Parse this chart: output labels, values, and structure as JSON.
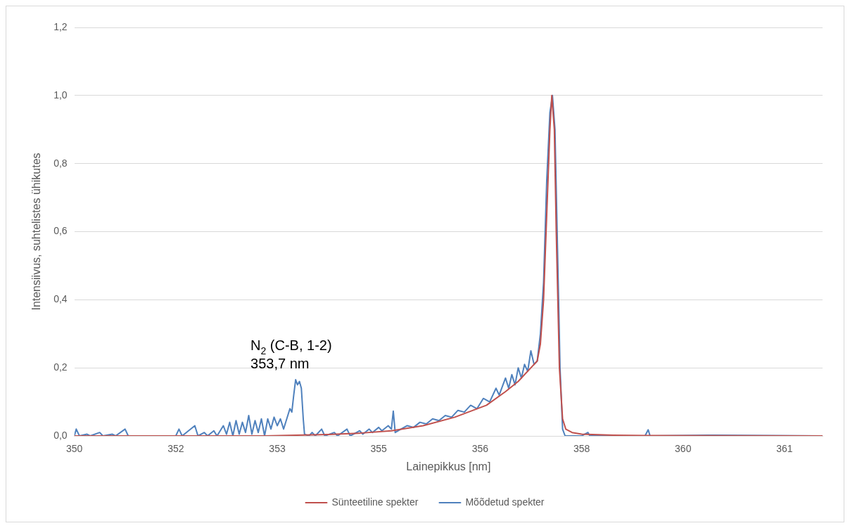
{
  "chart_data": {
    "type": "line",
    "xlabel": "Lainepikkus [nm]",
    "ylabel": "Intensiivus, suhtelistes ühikutes",
    "xlim": [
      350,
      361.8
    ],
    "xticks": [
      {
        "value": 350,
        "label": "350"
      },
      {
        "value": 351.6,
        "label": "352"
      },
      {
        "value": 353.2,
        "label": "353"
      },
      {
        "value": 354.8,
        "label": "355"
      },
      {
        "value": 356.4,
        "label": "356"
      },
      {
        "value": 358,
        "label": "358"
      },
      {
        "value": 359.6,
        "label": "360"
      },
      {
        "value": 361.2,
        "label": "361"
      }
    ],
    "ylim": [
      0,
      1.2
    ],
    "yticks": [
      {
        "value": 0,
        "label": "0,0"
      },
      {
        "value": 0.2,
        "label": "0,2"
      },
      {
        "value": 0.4,
        "label": "0,4"
      },
      {
        "value": 0.6,
        "label": "0,6"
      },
      {
        "value": 0.8,
        "label": "0,8"
      },
      {
        "value": 1,
        "label": "1,0"
      },
      {
        "value": 1.2,
        "label": "1,2"
      }
    ],
    "grid": "y",
    "legend": "bottom",
    "marker": "none",
    "line_style": "solid",
    "annotations": [
      {
        "text": "N$_{2}$ (C-B, 1-2)\n353,7 nm",
        "x": 353.5,
        "y": 0.165
      }
    ],
    "series": [
      {
        "name": "Sünteetiline spekter",
        "color": "#c0504d",
        "x": [
          350,
          353,
          353.5,
          354,
          354.5,
          355,
          355.5,
          356,
          356.5,
          356.8,
          357,
          357.2,
          357.3,
          357.35,
          357.4,
          357.45,
          357.5,
          357.53,
          357.57,
          357.6,
          357.65,
          357.7,
          357.75,
          357.85,
          358,
          358.5,
          359,
          361.8
        ],
        "values": [
          0,
          0,
          0.002,
          0.004,
          0.008,
          0.015,
          0.03,
          0.055,
          0.09,
          0.13,
          0.16,
          0.2,
          0.22,
          0.27,
          0.4,
          0.65,
          0.9,
          1,
          0.9,
          0.6,
          0.2,
          0.05,
          0.02,
          0.01,
          0.005,
          0.002,
          0.001,
          0
        ]
      },
      {
        "name": "Mõõdetud spekter",
        "color": "#4f81bd",
        "x": [
          350,
          350.03,
          350.08,
          350.2,
          350.25,
          350.4,
          350.45,
          350.6,
          350.65,
          350.8,
          350.85,
          351,
          351.6,
          351.65,
          351.7,
          351.9,
          351.95,
          352.05,
          352.1,
          352.2,
          352.25,
          352.35,
          352.4,
          352.45,
          352.5,
          352.55,
          352.6,
          352.65,
          352.7,
          352.75,
          352.8,
          352.85,
          352.9,
          352.95,
          353,
          353.05,
          353.1,
          353.15,
          353.2,
          353.25,
          353.3,
          353.35,
          353.4,
          353.43,
          353.46,
          353.49,
          353.52,
          353.55,
          353.58,
          353.61,
          353.63,
          353.7,
          353.75,
          353.8,
          353.9,
          353.95,
          354.1,
          354.15,
          354.3,
          354.35,
          354.5,
          354.55,
          354.65,
          354.7,
          354.8,
          354.85,
          354.95,
          355,
          355.03,
          355.06,
          355.15,
          355.25,
          355.35,
          355.45,
          355.55,
          355.65,
          355.75,
          355.85,
          355.95,
          356.05,
          356.15,
          356.25,
          356.35,
          356.45,
          356.55,
          356.65,
          356.7,
          356.8,
          356.85,
          356.9,
          356.95,
          357,
          357.05,
          357.1,
          357.15,
          357.2,
          357.25,
          357.3,
          357.35,
          357.4,
          357.45,
          357.5,
          357.54,
          357.58,
          357.62,
          357.66,
          357.7,
          357.74,
          358,
          358.1,
          358.13,
          359,
          359.05,
          359.08,
          360,
          361.8
        ],
        "values": [
          0,
          0.02,
          0,
          0.005,
          0,
          0.01,
          0,
          0.005,
          0,
          0.02,
          0,
          0,
          0,
          0.02,
          0,
          0.03,
          0,
          0.01,
          0,
          0.015,
          0,
          0.03,
          0.005,
          0.04,
          0,
          0.045,
          0.005,
          0.04,
          0.01,
          0.06,
          0.005,
          0.045,
          0.01,
          0.05,
          0,
          0.05,
          0.02,
          0.055,
          0.03,
          0.05,
          0.02,
          0.05,
          0.08,
          0.07,
          0.12,
          0.165,
          0.15,
          0.16,
          0.14,
          0.05,
          0.005,
          0,
          0.01,
          0,
          0.02,
          0,
          0.01,
          0,
          0.02,
          0,
          0.015,
          0.005,
          0.02,
          0.01,
          0.025,
          0.015,
          0.03,
          0.02,
          0.073,
          0.01,
          0.02,
          0.03,
          0.025,
          0.04,
          0.035,
          0.05,
          0.045,
          0.06,
          0.055,
          0.075,
          0.07,
          0.09,
          0.08,
          0.11,
          0.1,
          0.14,
          0.12,
          0.17,
          0.14,
          0.18,
          0.15,
          0.2,
          0.17,
          0.21,
          0.19,
          0.25,
          0.21,
          0.22,
          0.3,
          0.45,
          0.75,
          0.95,
          1,
          0.9,
          0.55,
          0.2,
          0.02,
          0,
          0,
          0.01,
          0,
          0,
          0.018,
          0,
          0.002,
          0
        ]
      }
    ]
  }
}
